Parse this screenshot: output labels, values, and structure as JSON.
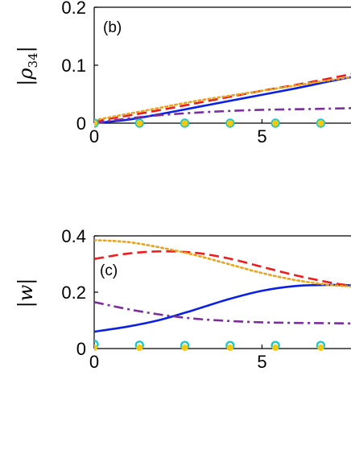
{
  "colors": {
    "solid_blue": "#0a20e6",
    "dashed_red": "#ee1c1c",
    "dotted_orange": "#e8a41c",
    "dashdot_purple": "#7a2f9c",
    "marker_open_cyan": "#1cc8c8",
    "marker_filled_yellow": "#f2c812",
    "axis": "#000000"
  },
  "chart_data": [
    {
      "type": "line",
      "panel_label": "(b)",
      "ylabel_symbol": "|ρ",
      "ylabel_sub": "34",
      "ylabel_close": "|",
      "xlim": [
        0,
        7.7
      ],
      "ylim": [
        0,
        0.2
      ],
      "xticks": [
        0,
        5
      ],
      "yticks": [
        0,
        0.1,
        0.2
      ],
      "xtick_labels": [
        "0",
        "5"
      ],
      "ytick_labels": [
        "0",
        "0.1",
        "0.2"
      ],
      "series": [
        {
          "style": "solid",
          "color": "#0a20e6",
          "x": [
            0,
            1,
            2,
            3,
            4,
            5,
            6,
            7,
            7.7
          ],
          "y": [
            0,
            0.006,
            0.016,
            0.027,
            0.038,
            0.049,
            0.06,
            0.072,
            0.08
          ]
        },
        {
          "style": "dashed",
          "color": "#ee1c1c",
          "x": [
            0,
            1,
            2,
            3,
            4,
            5,
            6,
            7,
            7.7
          ],
          "y": [
            0.003,
            0.013,
            0.023,
            0.034,
            0.045,
            0.056,
            0.066,
            0.077,
            0.085
          ]
        },
        {
          "style": "dotted",
          "color": "#e8a41c",
          "x": [
            0,
            1,
            2,
            3,
            4,
            5,
            6,
            7,
            7.7
          ],
          "y": [
            0.005,
            0.016,
            0.027,
            0.038,
            0.047,
            0.056,
            0.065,
            0.074,
            0.08
          ]
        },
        {
          "style": "dashdot",
          "color": "#7a2f9c",
          "x": [
            0,
            1,
            2,
            3,
            4,
            5,
            6,
            7,
            7.7
          ],
          "y": [
            0,
            0.008,
            0.014,
            0.018,
            0.021,
            0.023,
            0.024,
            0.025,
            0.026
          ]
        },
        {
          "style": "open-circle",
          "color": "#1cc8c8",
          "x": [
            0,
            1.35,
            2.7,
            4.05,
            5.4,
            6.75
          ],
          "y": [
            0,
            0,
            0,
            0,
            0,
            0
          ]
        },
        {
          "style": "filled-dot",
          "color": "#f2c812",
          "x": [
            0,
            1.35,
            2.7,
            4.05,
            5.4,
            6.75
          ],
          "y": [
            0,
            0,
            0,
            0,
            0,
            0
          ]
        }
      ]
    },
    {
      "type": "line",
      "panel_label": "(c)",
      "ylabel_symbol": "|w|",
      "ylabel_sub": "",
      "ylabel_close": "",
      "xlim": [
        0,
        7.7
      ],
      "ylim": [
        0,
        0.4
      ],
      "xticks": [
        0,
        5
      ],
      "yticks": [
        0,
        0.2,
        0.4
      ],
      "xtick_labels": [
        "0",
        "5"
      ],
      "ytick_labels": [
        "0",
        "0.2",
        "0.4"
      ],
      "series": [
        {
          "style": "solid",
          "color": "#0a20e6",
          "x": [
            0,
            1,
            2,
            3,
            4,
            5,
            6,
            7,
            7.7
          ],
          "y": [
            0.06,
            0.078,
            0.103,
            0.138,
            0.175,
            0.205,
            0.222,
            0.226,
            0.224
          ]
        },
        {
          "style": "dashed",
          "color": "#ee1c1c",
          "x": [
            0,
            1,
            2,
            3,
            4,
            5,
            6,
            7,
            7.7
          ],
          "y": [
            0.318,
            0.337,
            0.345,
            0.34,
            0.32,
            0.29,
            0.26,
            0.235,
            0.222
          ]
        },
        {
          "style": "dotted",
          "color": "#e8a41c",
          "x": [
            0,
            1,
            2,
            3,
            4,
            5,
            6,
            7,
            7.7
          ],
          "y": [
            0.385,
            0.378,
            0.358,
            0.332,
            0.3,
            0.268,
            0.243,
            0.226,
            0.22
          ]
        },
        {
          "style": "dashdot",
          "color": "#7a2f9c",
          "x": [
            0,
            1,
            2,
            3,
            4,
            5,
            6,
            7,
            7.7
          ],
          "y": [
            0.165,
            0.14,
            0.12,
            0.106,
            0.098,
            0.093,
            0.091,
            0.09,
            0.089
          ]
        },
        {
          "style": "open-circle",
          "color": "#1cc8c8",
          "x": [
            0,
            1.35,
            2.7,
            4.05,
            5.4,
            6.75
          ],
          "y": [
            0.015,
            0.012,
            0.011,
            0.011,
            0.011,
            0.011
          ]
        },
        {
          "style": "filled-dot",
          "color": "#f2c812",
          "x": [
            0,
            1.35,
            2.7,
            4.05,
            5.4,
            6.75
          ],
          "y": [
            0.003,
            0.003,
            0.003,
            0.003,
            0.003,
            0.003
          ]
        }
      ]
    }
  ]
}
